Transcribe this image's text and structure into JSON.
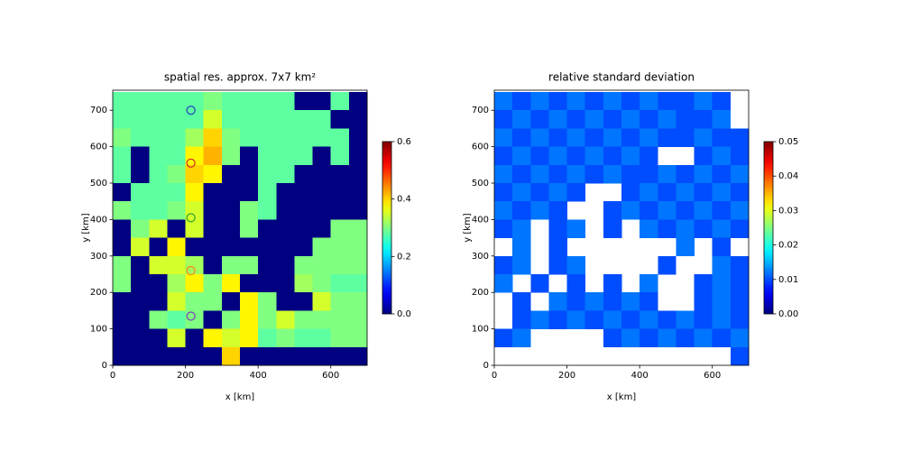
{
  "chart_data": [
    {
      "type": "heatmap",
      "title": "spatial res. approx. 7x7 km²",
      "x_label": "x [km]",
      "y_label": "y [km]",
      "xlim": [
        0,
        700
      ],
      "ylim": [
        0,
        755
      ],
      "xticks": [
        0,
        200,
        400,
        600
      ],
      "yticks": [
        0,
        100,
        200,
        300,
        400,
        500,
        600,
        700
      ],
      "cmap": "jet",
      "clim": [
        0,
        0.6
      ],
      "colorbar_ticks": [
        {
          "value": 0,
          "label": "0.0"
        },
        {
          "value": 0.2,
          "label": "0.2"
        },
        {
          "value": 0.4,
          "label": "0.4"
        },
        {
          "value": 0.6,
          "label": "0.6"
        }
      ],
      "values": [
        [
          0.28,
          0.28,
          0.28,
          0.28,
          0.28,
          0.3,
          0.28,
          0.28,
          0.28,
          0.28,
          0,
          0,
          0.28,
          0
        ],
        [
          0.28,
          0.28,
          0.28,
          0.28,
          0.28,
          0.35,
          0.28,
          0.28,
          0.28,
          0.28,
          0.28,
          0.28,
          0,
          0
        ],
        [
          0.3,
          0.28,
          0.28,
          0.28,
          0.32,
          0.4,
          0.3,
          0.28,
          0.28,
          0.28,
          0.28,
          0.28,
          0.28,
          0
        ],
        [
          0.28,
          0,
          0.28,
          0.28,
          0.38,
          0.42,
          0.3,
          0,
          0.28,
          0.28,
          0.28,
          0,
          0.28,
          0
        ],
        [
          0.28,
          0,
          0.28,
          0.3,
          0.4,
          0.38,
          0,
          0,
          0.28,
          0.28,
          0,
          0,
          0,
          0
        ],
        [
          0,
          0.28,
          0.28,
          0.28,
          0.38,
          0,
          0,
          0,
          0.28,
          0,
          0,
          0,
          0,
          0
        ],
        [
          0.3,
          0.28,
          0.28,
          0.3,
          0.35,
          0,
          0,
          0.3,
          0.28,
          0,
          0,
          0,
          0,
          0
        ],
        [
          0,
          0.3,
          0.35,
          0,
          0.35,
          0,
          0,
          0.3,
          0,
          0,
          0,
          0,
          0.3,
          0.3
        ],
        [
          0,
          0.35,
          0,
          0.38,
          0,
          0,
          0,
          0,
          0,
          0,
          0,
          0.3,
          0.3,
          0.3
        ],
        [
          0.3,
          0,
          0.35,
          0.35,
          0.32,
          0,
          0.3,
          0.3,
          0,
          0,
          0.3,
          0.3,
          0.3,
          0.3
        ],
        [
          0.3,
          0,
          0,
          0.32,
          0.38,
          0.3,
          0.38,
          0,
          0,
          0,
          0.32,
          0.3,
          0.28,
          0.28
        ],
        [
          0,
          0,
          0,
          0.35,
          0.3,
          0.3,
          0,
          0.38,
          0.3,
          0,
          0,
          0.35,
          0.3,
          0.3
        ],
        [
          0,
          0,
          0.3,
          0.28,
          0.3,
          0,
          0.3,
          0.38,
          0.3,
          0.35,
          0.3,
          0.3,
          0.3,
          0.3
        ],
        [
          0,
          0,
          0,
          0.35,
          0,
          0.38,
          0.35,
          0.38,
          0.28,
          0.3,
          0.28,
          0.28,
          0.3,
          0.3
        ],
        [
          0,
          0,
          0,
          0,
          0,
          0,
          0.4,
          0,
          0,
          0,
          0,
          0,
          0,
          0
        ]
      ],
      "markers": {
        "x": [
          215,
          215,
          215,
          215,
          215
        ],
        "y": [
          700,
          555,
          405,
          260,
          135
        ],
        "colors": [
          "#1f3fbf",
          "#d62728",
          "#2ca02c",
          "#ff7f0e",
          "#7b3fbf"
        ]
      }
    },
    {
      "type": "heatmap",
      "title": "relative standard deviation",
      "x_label": "x [km]",
      "y_label": "y [km]",
      "xlim": [
        0,
        700
      ],
      "ylim": [
        0,
        755
      ],
      "xticks": [
        0,
        200,
        400,
        600
      ],
      "yticks": [
        0,
        100,
        200,
        300,
        400,
        500,
        600,
        700
      ],
      "cmap": "jet",
      "clim": [
        0,
        0.05
      ],
      "colorbar_ticks": [
        {
          "value": 0,
          "label": "0.00"
        },
        {
          "value": 0.01,
          "label": "0.01"
        },
        {
          "value": 0.02,
          "label": "0.02"
        },
        {
          "value": 0.03,
          "label": "0.03"
        },
        {
          "value": 0.04,
          "label": "0.04"
        },
        {
          "value": 0.05,
          "label": "0.05"
        }
      ],
      "values": [
        [
          0.012,
          0.01,
          0.012,
          0.01,
          0.012,
          0.01,
          0.012,
          0.01,
          0.012,
          0.01,
          0.01,
          0.012,
          0.01,
          null
        ],
        [
          0.01,
          0.012,
          0.01,
          0.012,
          0.01,
          0.012,
          0.01,
          0.012,
          0.01,
          0.012,
          0.01,
          0.01,
          0.012,
          null
        ],
        [
          0.012,
          0.01,
          0.012,
          0.01,
          0.012,
          0.01,
          0.012,
          0.01,
          0.012,
          0.01,
          0.01,
          0.012,
          0.01,
          0.01
        ],
        [
          0.01,
          0.012,
          0.01,
          0.012,
          0.01,
          0.012,
          0.01,
          0.012,
          0.01,
          null,
          null,
          0.01,
          0.012,
          0.01
        ],
        [
          0.012,
          0.01,
          0.012,
          0.01,
          0.012,
          0.01,
          0.012,
          0.01,
          0.01,
          0.012,
          0.01,
          0.012,
          0.01,
          0.012
        ],
        [
          0.01,
          0.012,
          0.01,
          0.012,
          0.01,
          null,
          null,
          0.01,
          0.012,
          0.01,
          0.012,
          0.01,
          0.012,
          0.01
        ],
        [
          0.012,
          0.01,
          0.012,
          0.01,
          null,
          null,
          0.01,
          0.012,
          0.01,
          0.012,
          0.01,
          0.012,
          0.01,
          0.012
        ],
        [
          0.01,
          0.012,
          null,
          0.01,
          0.012,
          null,
          0.01,
          null,
          0.012,
          0.01,
          0.012,
          0.01,
          0.012,
          0.01
        ],
        [
          null,
          0.012,
          null,
          0.01,
          null,
          null,
          null,
          null,
          null,
          null,
          0.012,
          null,
          0.01,
          null
        ],
        [
          0.01,
          0.012,
          null,
          0.01,
          0.012,
          null,
          null,
          null,
          null,
          0.01,
          null,
          null,
          0.012,
          0.01
        ],
        [
          0.012,
          null,
          0.01,
          null,
          0.01,
          null,
          0.01,
          null,
          0.012,
          null,
          null,
          0.01,
          0.012,
          0.01
        ],
        [
          null,
          0.01,
          null,
          0.012,
          0.01,
          0.012,
          0.01,
          0.012,
          0.01,
          null,
          null,
          0.01,
          0.012,
          0.01
        ],
        [
          null,
          0.01,
          0.012,
          0.01,
          0.012,
          0.01,
          0.012,
          0.01,
          0.012,
          0.01,
          0.012,
          0.01,
          0.012,
          0.01
        ],
        [
          0.01,
          0.012,
          null,
          null,
          null,
          null,
          0.01,
          0.012,
          0.01,
          0.012,
          0.01,
          0.012,
          0.01,
          0.012
        ],
        [
          null,
          null,
          null,
          null,
          null,
          null,
          null,
          null,
          null,
          null,
          null,
          null,
          null,
          0.01
        ]
      ]
    }
  ]
}
